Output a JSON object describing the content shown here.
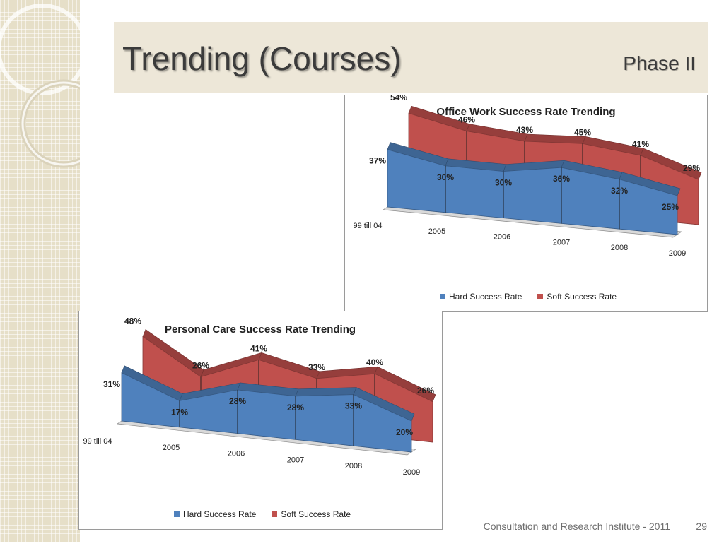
{
  "slide": {
    "title": "Trending (Courses)",
    "phase": "Phase II",
    "footer": "Consultation and Research Institute - 2011",
    "page_number": "29"
  },
  "colors": {
    "hard": "#4f81bd",
    "soft": "#c0504d",
    "title_band": "#ede7d8"
  },
  "chart_data": [
    {
      "type": "area",
      "title": "Office Work Success Rate Trending",
      "categories": [
        "99 till 04",
        "2005",
        "2006",
        "2007",
        "2008",
        "2009"
      ],
      "series": [
        {
          "name": "Hard Success Rate",
          "values": [
            37,
            30,
            30,
            36,
            32,
            25
          ],
          "labels": [
            "37%",
            "30%",
            "30%",
            "36%",
            "32%",
            "25%"
          ]
        },
        {
          "name": "Soft Success Rate",
          "values": [
            54,
            46,
            43,
            45,
            41,
            29
          ],
          "labels": [
            "54%",
            "46%",
            "43%",
            "45%",
            "41%",
            "29%"
          ]
        }
      ],
      "legend": "bottom",
      "grid": false
    },
    {
      "type": "area",
      "title": "Personal Care Success Rate Trending",
      "categories": [
        "99 till 04",
        "2005",
        "2006",
        "2007",
        "2008",
        "2009"
      ],
      "series": [
        {
          "name": "Hard Success Rate",
          "values": [
            31,
            17,
            28,
            28,
            33,
            20
          ],
          "labels": [
            "31%",
            "17%",
            "28%",
            "28%",
            "33%",
            "20%"
          ]
        },
        {
          "name": "Soft Success Rate",
          "values": [
            48,
            26,
            41,
            33,
            40,
            26
          ],
          "labels": [
            "48%",
            "26%",
            "41%",
            "33%",
            "40%",
            "26%"
          ]
        }
      ],
      "legend": "bottom",
      "grid": false
    }
  ]
}
